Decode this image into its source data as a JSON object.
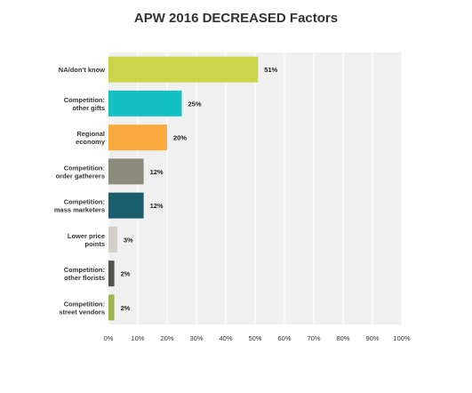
{
  "chart_data": {
    "type": "bar",
    "orientation": "horizontal",
    "title": "APW 2016 DECREASED Factors",
    "xlabel": "",
    "ylabel": "",
    "xlim": [
      0,
      100
    ],
    "grid": true,
    "categories": [
      [
        "NA/don't know"
      ],
      [
        "Competition:",
        "other gifts"
      ],
      [
        "Regional",
        "economy"
      ],
      [
        "Competition:",
        "order gatherers"
      ],
      [
        "Competition:",
        "mass marketers"
      ],
      [
        "Lower price",
        "points"
      ],
      [
        "Competition:",
        "other florists"
      ],
      [
        "Competition:",
        "street vendors"
      ]
    ],
    "values": [
      51,
      25,
      20,
      12,
      12,
      3,
      2,
      2
    ],
    "value_labels": [
      "51%",
      "25%",
      "20%",
      "12%",
      "12%",
      "3%",
      "2%",
      "2%"
    ],
    "colors": [
      "#ccd44a",
      "#13c1c3",
      "#fbab3d",
      "#8b8a7b",
      "#1a5d6b",
      "#d5cec5",
      "#51534d",
      "#9bb752"
    ],
    "x_ticks": [
      "0%",
      "10%",
      "20%",
      "30%",
      "40%",
      "50%",
      "60%",
      "70%",
      "80%",
      "90%",
      "100%"
    ]
  }
}
